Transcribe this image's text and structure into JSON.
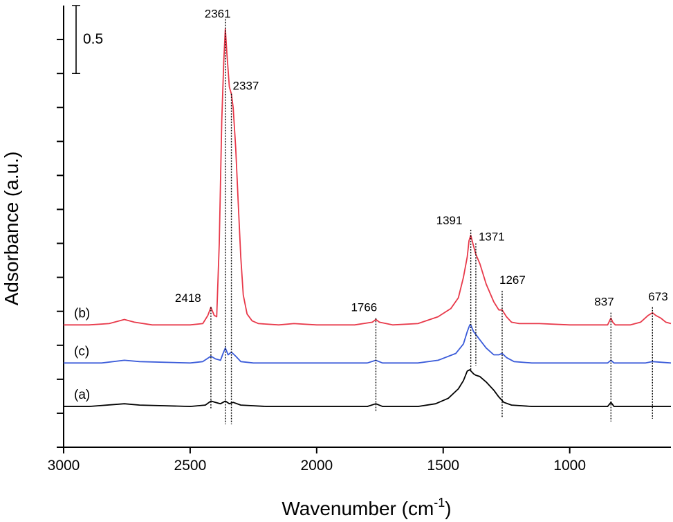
{
  "chart_data": {
    "type": "line",
    "xlabel_main": "Wavenumber (cm",
    "xlabel_sup": "-1",
    "xlabel_close": ")",
    "ylabel": "Adsorbance (a.u.)",
    "xlim": [
      3000,
      600
    ],
    "x_reversed": true,
    "ylim": [
      -0.3,
      2.95
    ],
    "x_ticks": [
      3000,
      2500,
      2000,
      1500,
      1000
    ],
    "x_tick_labels": [
      "3000",
      "2500",
      "2000",
      "1500",
      "1000"
    ],
    "y_tick_values": [
      -0.3,
      -0.05,
      0.2,
      0.45,
      0.7,
      0.95,
      1.2,
      1.45,
      1.7,
      1.95,
      2.2,
      2.45,
      2.7
    ],
    "scale_bar": {
      "label": "0.5",
      "value": 0.5,
      "y_bottom": 2.45
    },
    "series": [
      {
        "name": "(b)",
        "color": "#e8394a",
        "baseline": 0.6,
        "points": [
          [
            3000,
            0.6
          ],
          [
            2900,
            0.6
          ],
          [
            2820,
            0.61
          ],
          [
            2760,
            0.64
          ],
          [
            2720,
            0.62
          ],
          [
            2650,
            0.6
          ],
          [
            2500,
            0.6
          ],
          [
            2450,
            0.61
          ],
          [
            2430,
            0.67
          ],
          [
            2418,
            0.73
          ],
          [
            2405,
            0.67
          ],
          [
            2395,
            0.66
          ],
          [
            2385,
            1.2
          ],
          [
            2375,
            2.1
          ],
          [
            2367,
            2.55
          ],
          [
            2361,
            2.78
          ],
          [
            2355,
            2.6
          ],
          [
            2345,
            2.35
          ],
          [
            2337,
            2.3
          ],
          [
            2330,
            2.2
          ],
          [
            2320,
            1.9
          ],
          [
            2310,
            1.5
          ],
          [
            2300,
            1.1
          ],
          [
            2290,
            0.82
          ],
          [
            2275,
            0.68
          ],
          [
            2255,
            0.63
          ],
          [
            2230,
            0.61
          ],
          [
            2150,
            0.6
          ],
          [
            2090,
            0.61
          ],
          [
            2000,
            0.6
          ],
          [
            1850,
            0.6
          ],
          [
            1780,
            0.62
          ],
          [
            1766,
            0.64
          ],
          [
            1752,
            0.62
          ],
          [
            1700,
            0.6
          ],
          [
            1600,
            0.61
          ],
          [
            1520,
            0.66
          ],
          [
            1470,
            0.72
          ],
          [
            1440,
            0.8
          ],
          [
            1420,
            0.95
          ],
          [
            1405,
            1.1
          ],
          [
            1398,
            1.22
          ],
          [
            1391,
            1.26
          ],
          [
            1383,
            1.2
          ],
          [
            1371,
            1.12
          ],
          [
            1355,
            1.05
          ],
          [
            1330,
            0.9
          ],
          [
            1300,
            0.77
          ],
          [
            1280,
            0.71
          ],
          [
            1267,
            0.71
          ],
          [
            1250,
            0.66
          ],
          [
            1230,
            0.62
          ],
          [
            1200,
            0.61
          ],
          [
            1120,
            0.61
          ],
          [
            1000,
            0.6
          ],
          [
            900,
            0.6
          ],
          [
            850,
            0.6
          ],
          [
            840,
            0.64
          ],
          [
            837,
            0.65
          ],
          [
            830,
            0.62
          ],
          [
            820,
            0.6
          ],
          [
            760,
            0.6
          ],
          [
            720,
            0.62
          ],
          [
            690,
            0.67
          ],
          [
            673,
            0.69
          ],
          [
            660,
            0.67
          ],
          [
            640,
            0.65
          ],
          [
            620,
            0.62
          ],
          [
            600,
            0.61
          ]
        ]
      },
      {
        "name": "(c)",
        "color": "#3a5bd9",
        "baseline": 0.32,
        "points": [
          [
            3000,
            0.32
          ],
          [
            2850,
            0.32
          ],
          [
            2760,
            0.34
          ],
          [
            2700,
            0.33
          ],
          [
            2500,
            0.32
          ],
          [
            2450,
            0.33
          ],
          [
            2418,
            0.37
          ],
          [
            2400,
            0.35
          ],
          [
            2380,
            0.34
          ],
          [
            2370,
            0.39
          ],
          [
            2361,
            0.43
          ],
          [
            2350,
            0.38
          ],
          [
            2337,
            0.4
          ],
          [
            2320,
            0.37
          ],
          [
            2300,
            0.33
          ],
          [
            2250,
            0.32
          ],
          [
            2000,
            0.32
          ],
          [
            1800,
            0.32
          ],
          [
            1766,
            0.34
          ],
          [
            1740,
            0.32
          ],
          [
            1600,
            0.32
          ],
          [
            1520,
            0.34
          ],
          [
            1450,
            0.39
          ],
          [
            1420,
            0.46
          ],
          [
            1405,
            0.55
          ],
          [
            1395,
            0.6
          ],
          [
            1391,
            0.6
          ],
          [
            1380,
            0.55
          ],
          [
            1371,
            0.53
          ],
          [
            1355,
            0.49
          ],
          [
            1330,
            0.43
          ],
          [
            1300,
            0.38
          ],
          [
            1280,
            0.38
          ],
          [
            1267,
            0.39
          ],
          [
            1250,
            0.36
          ],
          [
            1220,
            0.33
          ],
          [
            1150,
            0.32
          ],
          [
            1000,
            0.32
          ],
          [
            850,
            0.32
          ],
          [
            837,
            0.34
          ],
          [
            825,
            0.32
          ],
          [
            700,
            0.32
          ],
          [
            673,
            0.33
          ],
          [
            600,
            0.32
          ]
        ]
      },
      {
        "name": "(a)",
        "color": "#000000",
        "baseline": 0.0,
        "points": [
          [
            3000,
            0.0
          ],
          [
            2900,
            0.0
          ],
          [
            2760,
            0.02
          ],
          [
            2700,
            0.01
          ],
          [
            2500,
            0.0
          ],
          [
            2440,
            0.01
          ],
          [
            2418,
            0.04
          ],
          [
            2400,
            0.03
          ],
          [
            2380,
            0.02
          ],
          [
            2361,
            0.04
          ],
          [
            2345,
            0.02
          ],
          [
            2330,
            0.03
          ],
          [
            2300,
            0.01
          ],
          [
            2200,
            0.0
          ],
          [
            2000,
            0.0
          ],
          [
            1800,
            0.0
          ],
          [
            1766,
            0.02
          ],
          [
            1740,
            0.0
          ],
          [
            1600,
            0.0
          ],
          [
            1530,
            0.02
          ],
          [
            1480,
            0.06
          ],
          [
            1440,
            0.13
          ],
          [
            1420,
            0.19
          ],
          [
            1405,
            0.26
          ],
          [
            1395,
            0.27
          ],
          [
            1380,
            0.24
          ],
          [
            1371,
            0.23
          ],
          [
            1355,
            0.22
          ],
          [
            1330,
            0.18
          ],
          [
            1300,
            0.12
          ],
          [
            1280,
            0.07
          ],
          [
            1260,
            0.03
          ],
          [
            1230,
            0.01
          ],
          [
            1150,
            0.0
          ],
          [
            1000,
            0.0
          ],
          [
            850,
            0.0
          ],
          [
            837,
            0.03
          ],
          [
            825,
            0.0
          ],
          [
            700,
            0.0
          ],
          [
            600,
            0.0
          ]
        ]
      }
    ],
    "peak_markers": [
      {
        "x": 2418,
        "label": "2418",
        "y_top": 0.73,
        "y_bottom": -0.02
      },
      {
        "x": 2361,
        "label": "2361",
        "y_top": 2.85,
        "y_bottom": -0.13
      },
      {
        "x": 2337,
        "label": "2337",
        "y_top": 2.3,
        "y_bottom": -0.13
      },
      {
        "x": 1766,
        "label": "1766",
        "y_top": 0.65,
        "y_bottom": -0.04
      },
      {
        "x": 1391,
        "label": "1391",
        "y_top": 1.3,
        "y_bottom": 0.27
      },
      {
        "x": 1371,
        "label": "1371",
        "y_top": 1.2,
        "y_bottom": 0.3
      },
      {
        "x": 1267,
        "label": "1267",
        "y_top": 0.85,
        "y_bottom": -0.08
      },
      {
        "x": 837,
        "label": "837",
        "y_top": 0.69,
        "y_bottom": -0.11
      },
      {
        "x": 673,
        "label": "673",
        "y_top": 0.73,
        "y_bottom": -0.09
      }
    ]
  }
}
